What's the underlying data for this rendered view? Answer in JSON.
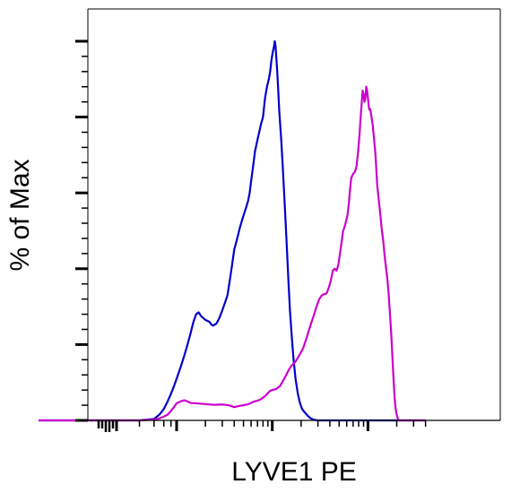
{
  "chart_data": {
    "type": "line",
    "title": "",
    "xlabel": "LYVE1 PE",
    "ylabel": "% of Max",
    "x_scale": "log",
    "xlim": [
      -20,
      4000
    ],
    "ylim": [
      0,
      105
    ],
    "x_major_ticks": [
      0,
      10,
      100,
      1000
    ],
    "y_major_ticks": [
      0,
      20,
      40,
      60,
      80,
      100
    ],
    "grid": false,
    "legend": "none",
    "series": [
      {
        "color": "#0000cc",
        "points": [
          [
            -20,
            0
          ],
          [
            -2,
            0
          ],
          [
            0,
            0
          ],
          [
            2,
            0
          ],
          [
            4,
            0.4
          ],
          [
            5,
            1.5
          ],
          [
            6,
            3
          ],
          [
            7,
            5
          ],
          [
            8,
            7
          ],
          [
            9,
            9
          ],
          [
            10,
            11
          ],
          [
            11,
            14
          ],
          [
            12,
            17
          ],
          [
            13,
            20
          ],
          [
            14,
            23
          ],
          [
            15,
            26
          ],
          [
            16,
            28
          ],
          [
            17,
            28.5
          ],
          [
            18,
            27.5
          ],
          [
            19,
            27
          ],
          [
            20,
            26.5
          ],
          [
            22,
            26
          ],
          [
            23,
            25.3
          ],
          [
            24,
            25
          ],
          [
            26,
            25.5
          ],
          [
            28,
            27
          ],
          [
            30,
            29
          ],
          [
            32,
            31
          ],
          [
            34,
            33
          ],
          [
            36,
            37
          ],
          [
            38,
            41
          ],
          [
            40,
            45
          ],
          [
            43,
            48
          ],
          [
            46,
            51
          ],
          [
            50,
            54
          ],
          [
            53,
            56
          ],
          [
            56,
            58
          ],
          [
            58,
            60
          ],
          [
            60,
            63
          ],
          [
            63,
            67
          ],
          [
            66,
            71
          ],
          [
            70,
            74
          ],
          [
            73,
            76
          ],
          [
            76,
            78
          ],
          [
            80,
            80
          ],
          [
            84,
            85
          ],
          [
            88,
            88
          ],
          [
            92,
            90
          ],
          [
            95,
            92
          ],
          [
            98,
            95
          ],
          [
            101,
            97
          ],
          [
            104,
            98.5
          ],
          [
            106,
            100
          ],
          [
            108,
            99
          ],
          [
            110,
            96
          ],
          [
            112,
            93
          ],
          [
            115,
            88
          ],
          [
            118,
            82
          ],
          [
            121,
            78
          ],
          [
            124,
            74
          ],
          [
            128,
            68
          ],
          [
            133,
            60
          ],
          [
            138,
            52
          ],
          [
            143,
            44
          ],
          [
            148,
            36
          ],
          [
            153,
            29
          ],
          [
            160,
            22
          ],
          [
            167,
            16
          ],
          [
            175,
            11
          ],
          [
            185,
            7
          ],
          [
            195,
            4.5
          ],
          [
            205,
            3
          ],
          [
            220,
            2
          ],
          [
            235,
            1.2
          ],
          [
            250,
            0.6
          ],
          [
            270,
            0.2
          ],
          [
            300,
            0
          ],
          [
            4000,
            0
          ]
        ]
      },
      {
        "color": "#cc00cc",
        "points": [
          [
            -20,
            0
          ],
          [
            -2,
            0
          ],
          [
            0,
            0
          ],
          [
            2,
            0
          ],
          [
            4,
            0.2
          ],
          [
            5,
            0.5
          ],
          [
            6,
            1
          ],
          [
            7,
            1.5
          ],
          [
            8,
            2.5
          ],
          [
            9,
            3.5
          ],
          [
            10,
            4.5
          ],
          [
            11,
            5
          ],
          [
            12,
            5.3
          ],
          [
            13,
            5
          ],
          [
            14,
            4.6
          ],
          [
            16,
            4.5
          ],
          [
            20,
            4.3
          ],
          [
            25,
            4.1
          ],
          [
            30,
            4.2
          ],
          [
            35,
            4
          ],
          [
            40,
            3.5
          ],
          [
            45,
            3.8
          ],
          [
            50,
            4
          ],
          [
            55,
            4.2
          ],
          [
            60,
            4.6
          ],
          [
            65,
            5
          ],
          [
            70,
            5.2
          ],
          [
            75,
            5.5
          ],
          [
            80,
            6
          ],
          [
            85,
            6.5
          ],
          [
            90,
            7.2
          ],
          [
            95,
            7.8
          ],
          [
            100,
            8
          ],
          [
            110,
            8.3
          ],
          [
            120,
            9
          ],
          [
            130,
            10.5
          ],
          [
            140,
            12
          ],
          [
            150,
            13.5
          ],
          [
            160,
            14.5
          ],
          [
            175,
            15.5
          ],
          [
            190,
            17
          ],
          [
            210,
            19
          ],
          [
            230,
            22
          ],
          [
            250,
            25
          ],
          [
            270,
            27.5
          ],
          [
            290,
            30
          ],
          [
            310,
            32
          ],
          [
            330,
            33
          ],
          [
            350,
            33.3
          ],
          [
            370,
            33.5
          ],
          [
            390,
            35
          ],
          [
            410,
            37
          ],
          [
            430,
            39.5
          ],
          [
            450,
            40
          ],
          [
            470,
            39.5
          ],
          [
            490,
            41
          ],
          [
            510,
            44
          ],
          [
            530,
            47
          ],
          [
            550,
            50
          ],
          [
            570,
            51
          ],
          [
            590,
            52.5
          ],
          [
            610,
            54
          ],
          [
            630,
            57
          ],
          [
            650,
            61
          ],
          [
            670,
            64
          ],
          [
            700,
            65
          ],
          [
            730,
            65.5
          ],
          [
            760,
            67
          ],
          [
            790,
            71
          ],
          [
            820,
            76
          ],
          [
            850,
            82
          ],
          [
            880,
            87
          ],
          [
            900,
            86
          ],
          [
            920,
            84
          ],
          [
            940,
            85
          ],
          [
            960,
            88
          ],
          [
            980,
            87
          ],
          [
            1000,
            85
          ],
          [
            1030,
            82
          ],
          [
            1060,
            82
          ],
          [
            1090,
            80
          ],
          [
            1120,
            78
          ],
          [
            1150,
            75
          ],
          [
            1180,
            72
          ],
          [
            1200,
            70
          ],
          [
            1250,
            62
          ],
          [
            1300,
            58
          ],
          [
            1350,
            54
          ],
          [
            1400,
            50
          ],
          [
            1450,
            47
          ],
          [
            1500,
            43
          ],
          [
            1550,
            40
          ],
          [
            1600,
            37
          ],
          [
            1650,
            33
          ],
          [
            1700,
            28
          ],
          [
            1750,
            23
          ],
          [
            1800,
            17
          ],
          [
            1850,
            11
          ],
          [
            1900,
            6
          ],
          [
            1950,
            3
          ],
          [
            2000,
            1.5
          ],
          [
            2050,
            0.5
          ],
          [
            2100,
            0
          ],
          [
            4000,
            0
          ]
        ]
      }
    ]
  }
}
